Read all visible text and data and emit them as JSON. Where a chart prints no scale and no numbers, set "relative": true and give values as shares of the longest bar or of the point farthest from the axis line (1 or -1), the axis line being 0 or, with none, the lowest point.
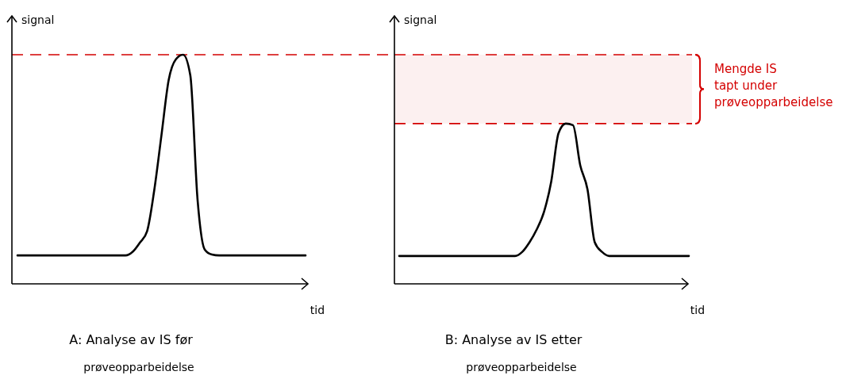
{
  "chart_data": [
    {
      "type": "line",
      "relative": true,
      "xlabel": "tid",
      "ylabel": "signal",
      "categories": [
        null,
        null,
        null,
        null,
        null,
        null,
        null,
        null,
        null,
        null,
        null,
        null,
        null,
        null,
        null,
        null,
        null,
        null,
        null,
        null,
        null,
        null,
        null,
        null,
        null,
        null,
        null,
        null,
        null,
        null,
        null,
        null,
        null,
        null,
        null,
        null,
        null,
        null,
        null,
        null,
        null
      ],
      "series": [
        {
          "color": "#000000",
          "values": [
            0.124,
            0.124,
            0.124,
            0.124,
            0.124,
            0.124,
            0.124,
            0.124,
            0.124,
            0.124,
            0.124,
            0.124,
            0.124,
            0.124,
            0.124,
            0.124,
            0.14,
            0.18,
            0.23,
            0.41,
            0.65,
            0.89,
            0.98,
            1.0,
            0.91,
            0.37,
            0.15,
            0.128,
            0.124,
            0.124,
            0.124,
            0.124,
            0.124,
            0.124,
            0.124,
            0.124,
            0.124,
            0.124,
            0.124,
            0.124,
            0.124
          ]
        }
      ],
      "ref_lines": [
        {
          "axis": "y",
          "value": 1,
          "color": "#d40000",
          "line_style": "dashed"
        }
      ],
      "annotations": [
        "A:  Analyse av IS før\nprøveopparbeidelse"
      ]
    },
    {
      "type": "line",
      "relative": true,
      "xlabel": "tid",
      "ylabel": "signal",
      "categories": [
        null,
        null,
        null,
        null,
        null,
        null,
        null,
        null,
        null,
        null,
        null,
        null,
        null,
        null,
        null,
        null,
        null,
        null,
        null,
        null,
        null,
        null,
        null,
        null,
        null,
        null,
        null,
        null,
        null,
        null,
        null,
        null,
        null,
        null,
        null,
        null,
        null,
        null,
        null,
        null,
        null
      ],
      "series": [
        {
          "color": "#000000",
          "values": [
            0.174,
            0.174,
            0.174,
            0.174,
            0.174,
            0.174,
            0.174,
            0.174,
            0.174,
            0.174,
            0.174,
            0.174,
            0.174,
            0.174,
            0.174,
            0.174,
            0.174,
            0.2,
            0.26,
            0.34,
            0.45,
            0.64,
            0.94,
            1.0,
            0.99,
            0.74,
            0.59,
            0.26,
            0.2,
            0.174,
            0.174,
            0.174,
            0.174,
            0.174,
            0.174,
            0.174,
            0.174,
            0.174,
            0.174,
            0.174,
            0.174
          ]
        }
      ],
      "ref_lines": [
        {
          "axis": "y",
          "value": 1.43,
          "color": "#d40000",
          "line_style": "dashed"
        },
        {
          "axis": "y",
          "value": 1,
          "color": "#d40000",
          "line_style": "dashed"
        }
      ],
      "annotations": [
        "B:  Analyse av IS etter\nprøveopparbeidelse",
        "Mengde IS\ntapt under\nprøveopparbeidelse"
      ],
      "bands": [
        {
          "axis": "y",
          "from": 1,
          "to": 1.43,
          "color": "#d40000"
        }
      ]
    }
  ]
}
